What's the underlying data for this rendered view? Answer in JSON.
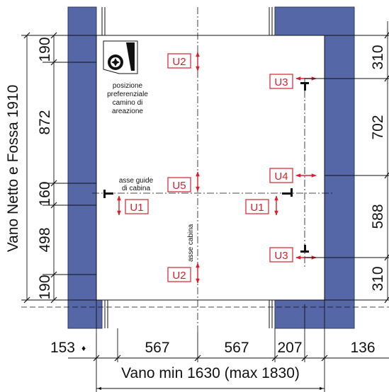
{
  "colors": {
    "wall": "#5567a6",
    "wall_edge": "#2e3a66",
    "marker": "#d8202c",
    "line": "#111111"
  },
  "dimensions": {
    "left_total": "Vano Netto e Fossa 1910",
    "left_segments": [
      "190",
      "872",
      "160",
      "498",
      "190"
    ],
    "right_segments": [
      "310",
      "702",
      "588",
      "310"
    ],
    "bottom_segments": [
      "153",
      "567",
      "567",
      "207",
      "136"
    ],
    "bottom_total": "Vano min 1630 (max 1830)"
  },
  "labels": {
    "vent_note": [
      "posizione",
      "preferenziale",
      "camino di",
      "areazione"
    ],
    "guide_axis": [
      "asse guide",
      "di cabina"
    ],
    "cabin_axis": "asse cabina",
    "marker_glyph": "♦"
  },
  "markers": [
    "U2",
    "U3",
    "U5",
    "U4",
    "U1",
    "U1",
    "U3",
    "U2"
  ],
  "icons": [
    "fan-icon",
    "guide-rail-icon"
  ]
}
